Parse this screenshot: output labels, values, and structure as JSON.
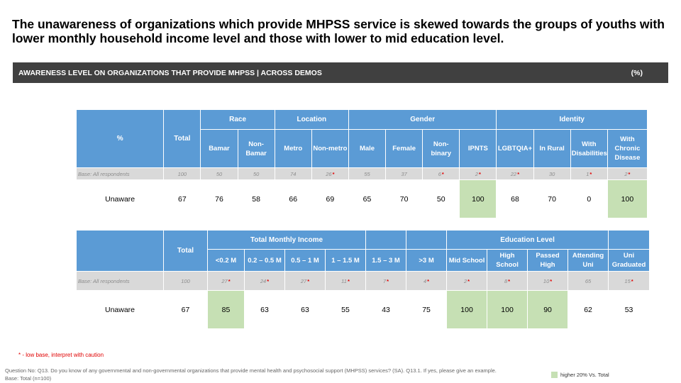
{
  "headline": "The unawareness of organizations which provide MHPSS service is skewed towards the groups of youths with lower monthly household income level and those with lower to mid education level.",
  "banner": {
    "title": "AWARENESS LEVEL ON ORGANIZATIONS THAT PROVIDE MHPSS | ACROSS DEMOS",
    "unit": "(%)"
  },
  "colors": {
    "header": "#5b9bd5",
    "highlight": "#c6e0b4",
    "banner": "#404040",
    "low_base_marker": "#e00000"
  },
  "table1": {
    "corner": "%",
    "total": "Total",
    "groups": {
      "race": "Race",
      "location": "Location",
      "gender": "Gender",
      "identity": "Identity"
    },
    "columns": [
      "Bamar",
      "Non-Bamar",
      "Metro",
      "Non-metro",
      "Male",
      "Female",
      "Non-binary",
      "IPNTS",
      "LGBTQIA+",
      "In Rural",
      "With Disabilities",
      "With Chronic Disease"
    ],
    "base": {
      "label": "Base: All respondents",
      "total": "100",
      "values": [
        "50",
        "50",
        "74",
        "26",
        "55",
        "37",
        "6",
        "2",
        "22",
        "30",
        "1",
        "2"
      ],
      "low": [
        false,
        false,
        false,
        true,
        false,
        false,
        true,
        true,
        true,
        false,
        true,
        true
      ]
    },
    "row": {
      "label": "Unaware",
      "total": "67",
      "values": [
        "76",
        "58",
        "66",
        "69",
        "65",
        "70",
        "50",
        "100",
        "68",
        "70",
        "0",
        "100"
      ],
      "highlight": [
        false,
        false,
        false,
        false,
        false,
        false,
        false,
        true,
        false,
        false,
        false,
        true
      ]
    }
  },
  "table2": {
    "total": "Total",
    "groups": {
      "income": "Total Monthly Income",
      "education": "Education Level"
    },
    "columns": [
      "<0.2 M",
      "0.2 – 0.5 M",
      "0.5 – 1 M",
      "1 – 1.5 M",
      "1.5 – 3 M",
      ">3 M",
      "Mid School",
      "High School",
      "Passed High",
      "Attending Uni",
      "Uni Graduated"
    ],
    "base": {
      "label": "Base: All respondents",
      "total": "100",
      "values": [
        "27",
        "24",
        "27",
        "11",
        "7",
        "4",
        "2",
        "8",
        "10",
        "65",
        "15"
      ],
      "low": [
        true,
        true,
        true,
        true,
        true,
        true,
        true,
        true,
        true,
        false,
        true
      ]
    },
    "row": {
      "label": "Unaware",
      "total": "67",
      "values": [
        "85",
        "63",
        "63",
        "55",
        "43",
        "75",
        "100",
        "100",
        "90",
        "62",
        "53"
      ],
      "highlight": [
        true,
        false,
        false,
        false,
        false,
        false,
        true,
        true,
        true,
        false,
        false
      ]
    }
  },
  "note": "* - low base, interpret with caution",
  "footer": {
    "question": "Question No: Q13. Do you know of any governmental and non-governmental organizations that provide mental health and psychosocial support (MHPSS) services? (SA). Q13.1. If yes, please give an example.",
    "base": "Base: Total (n=100)"
  },
  "legend": {
    "label": "higher 20% Vs. Total"
  }
}
